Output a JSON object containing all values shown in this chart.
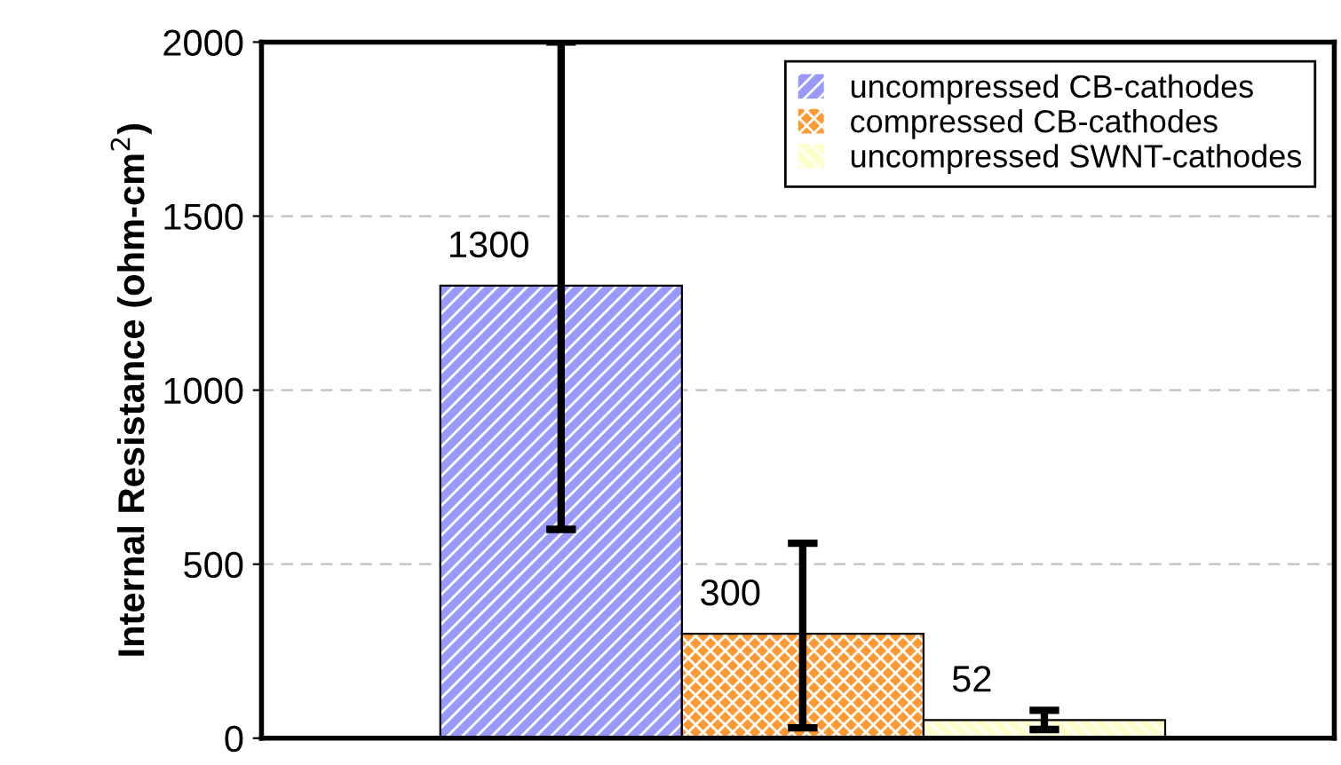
{
  "chart_data": {
    "type": "bar",
    "ylabel": "Internal Resistance (ohm-cm$^{2}$)",
    "categories": [
      null
    ],
    "series": [
      {
        "name": "uncompressed CB-cathodes",
        "color": "#9999ff",
        "values": [
          1300
        ],
        "errors": [
          [
            600,
            2000
          ]
        ]
      },
      {
        "name": "compressed CB-cathodes",
        "color": "#ff9933",
        "values": [
          300
        ],
        "errors": [
          [
            30,
            560
          ]
        ]
      },
      {
        "name": "uncompressed SWNT-cathodes",
        "color": "#ffffcc",
        "values": [
          52
        ],
        "errors": [
          [
            25,
            80
          ]
        ]
      }
    ],
    "ylim": [
      0,
      2000
    ],
    "yticks": [
      0,
      500,
      1000,
      1500,
      2000
    ],
    "grid": "y",
    "legend": "top right",
    "data_labels": true
  }
}
